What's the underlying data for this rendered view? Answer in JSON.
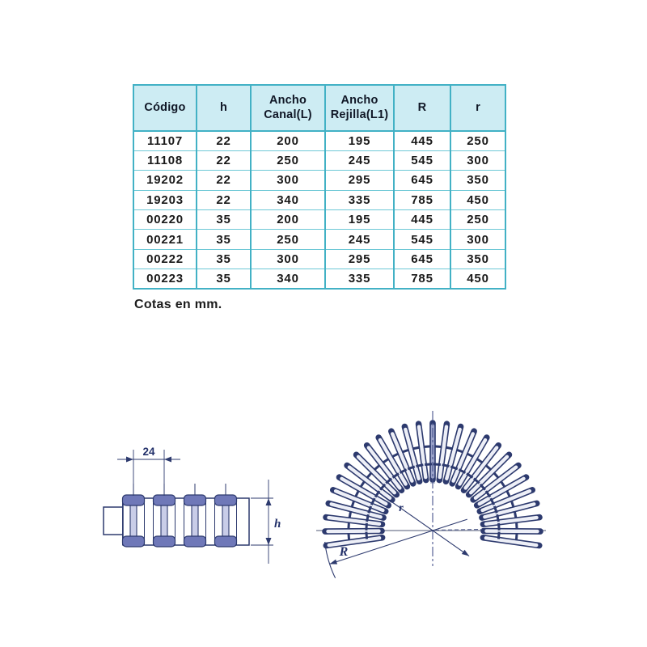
{
  "table": {
    "columns": [
      "Código",
      "h",
      "Ancho\nCanal(L)",
      "Ancho\nRejilla(L1)",
      "R",
      "r"
    ],
    "rows": [
      [
        "11107",
        "22",
        "200",
        "195",
        "445",
        "250"
      ],
      [
        "11108",
        "22",
        "250",
        "245",
        "545",
        "300"
      ],
      [
        "19202",
        "22",
        "300",
        "295",
        "645",
        "350"
      ],
      [
        "19203",
        "22",
        "340",
        "335",
        "785",
        "450"
      ],
      [
        "00220",
        "35",
        "200",
        "195",
        "445",
        "250"
      ],
      [
        "00221",
        "35",
        "250",
        "245",
        "545",
        "300"
      ],
      [
        "00222",
        "35",
        "300",
        "295",
        "645",
        "350"
      ],
      [
        "00223",
        "35",
        "340",
        "335",
        "785",
        "450"
      ]
    ]
  },
  "note": "Cotas en mm.",
  "drawings": {
    "profile": {
      "pitch_label": "24",
      "height_label": "h"
    },
    "fan": {
      "outer_radius_label": "R",
      "inner_radius_label": "r"
    }
  },
  "colors": {
    "table_border": "#42b1c5",
    "table_row_line": "#6ec8d6",
    "table_header_bg": "#cdecf3",
    "drawing_line": "#2d3a6e",
    "cap_fill": "#6f78b8"
  }
}
